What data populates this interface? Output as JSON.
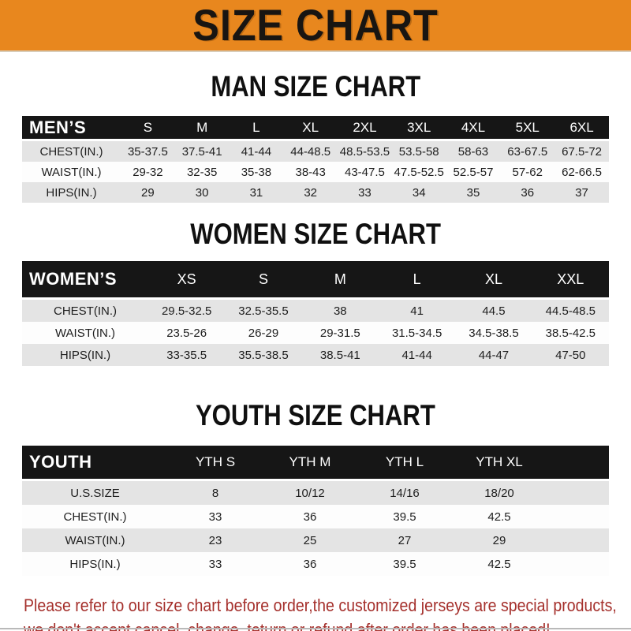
{
  "banner": {
    "title": "SIZE CHART"
  },
  "sections": [
    {
      "id": "men",
      "title": "MAN SIZE CHART",
      "header_label": "MEN’S",
      "columns": [
        "S",
        "M",
        "L",
        "XL",
        "2XL",
        "3XL",
        "4XL",
        "5XL",
        "6XL"
      ],
      "rows": [
        {
          "label": "CHEST(IN.)",
          "values": [
            "35-37.5",
            "37.5-41",
            "41-44",
            "44-48.5",
            "48.5-53.5",
            "53.5-58",
            "58-63",
            "63-67.5",
            "67.5-72"
          ]
        },
        {
          "label": "WAIST(IN.)",
          "values": [
            "29-32",
            "32-35",
            "35-38",
            "38-43",
            "43-47.5",
            "47.5-52.5",
            "52.5-57",
            "57-62",
            "62-66.5"
          ]
        },
        {
          "label": "HIPS(IN.)",
          "values": [
            "29",
            "30",
            "31",
            "32",
            "33",
            "34",
            "35",
            "36",
            "37"
          ]
        }
      ]
    },
    {
      "id": "women",
      "title": "WOMEN SIZE CHART",
      "header_label": "WOMEN’S",
      "columns": [
        "XS",
        "S",
        "M",
        "L",
        "XL",
        "XXL"
      ],
      "rows": [
        {
          "label": "CHEST(IN.)",
          "values": [
            "29.5-32.5",
            "32.5-35.5",
            "38",
            "41",
            "44.5",
            "44.5-48.5"
          ]
        },
        {
          "label": "WAIST(IN.)",
          "values": [
            "23.5-26",
            "26-29",
            "29-31.5",
            "31.5-34.5",
            "34.5-38.5",
            "38.5-42.5"
          ]
        },
        {
          "label": "HIPS(IN.)",
          "values": [
            "33-35.5",
            "35.5-38.5",
            "38.5-41",
            "41-44",
            "44-47",
            "47-50"
          ]
        }
      ]
    },
    {
      "id": "youth",
      "title": "YOUTH SIZE CHART",
      "header_label": "YOUTH",
      "columns": [
        "YTH S",
        "YTH M",
        "YTH L",
        "YTH XL"
      ],
      "rows": [
        {
          "label": "U.S.SIZE",
          "values": [
            "8",
            "10/12",
            "14/16",
            "18/20"
          ]
        },
        {
          "label": "CHEST(IN.)",
          "values": [
            "33",
            "36",
            "39.5",
            "42.5"
          ]
        },
        {
          "label": "WAIST(IN.)",
          "values": [
            "23",
            "25",
            "27",
            "29"
          ]
        },
        {
          "label": "HIPS(IN.)",
          "values": [
            "33",
            "36",
            "39.5",
            "42.5"
          ]
        }
      ]
    }
  ],
  "footer": {
    "line1": "Please refer to our size chart before order,the customized jerseys are special products,",
    "line2": "we don't accept cancel, change, teturn or refund after order has been placed!"
  },
  "colors": {
    "orange": "#E8871E",
    "bannerText": "#181512",
    "bannerEdge": "#D8CCB8",
    "headerBar": "#161616",
    "headerText": "#FFFFFF",
    "rowGray": "#E4E4E4",
    "rowWhite": "#FDFDFD",
    "text": "#1E1E1E",
    "red": "#A5302C",
    "bottomLine": "#B9B9B9"
  }
}
